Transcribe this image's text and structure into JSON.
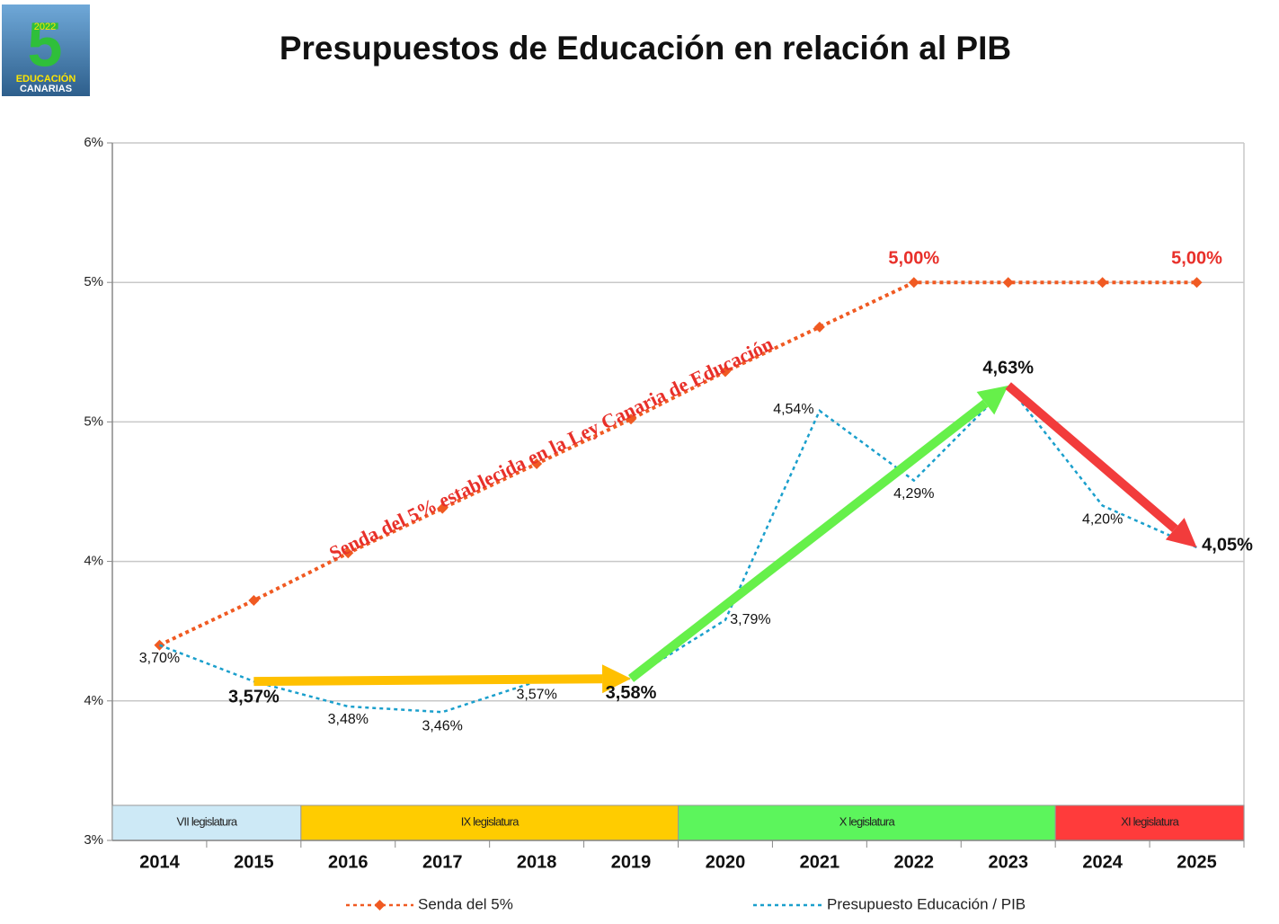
{
  "chart_data": {
    "type": "line",
    "title": "Presupuestos de Educación en relación al PIB",
    "logo": {
      "year": "2022",
      "lines": [
        "EDUCACIÓN",
        "CANARIAS"
      ]
    },
    "categories": [
      "2014",
      "2015",
      "2016",
      "2017",
      "2018",
      "2019",
      "2020",
      "2021",
      "2022",
      "2023",
      "2024",
      "2025"
    ],
    "series": [
      {
        "name": "Senda del 5%",
        "color": "#f05a22",
        "values": [
          3.7,
          3.86,
          4.03,
          4.19,
          4.35,
          4.51,
          4.68,
          4.84,
          5.0,
          5.0,
          5.0,
          5.0
        ],
        "value_labels": [
          null,
          null,
          null,
          null,
          null,
          null,
          null,
          null,
          "5,00%",
          null,
          null,
          "5,00%"
        ]
      },
      {
        "name": "Presupuesto Educación / PIB",
        "color": "#1a9fcc",
        "values": [
          3.7,
          3.57,
          3.48,
          3.46,
          3.57,
          3.58,
          3.79,
          4.54,
          4.29,
          4.63,
          4.2,
          4.05
        ],
        "value_labels": [
          "3,70%",
          "3,57%",
          "3,48%",
          "3,46%",
          "3,57%",
          "3,58%",
          "3,79%",
          "4,54%",
          "4,29%",
          "4,63%",
          "4,20%",
          "4,05%"
        ]
      }
    ],
    "ylim": [
      3,
      5.5
    ],
    "yticks": [
      {
        "value": 3,
        "label": "3%"
      },
      {
        "value": 3.5,
        "label": "4%"
      },
      {
        "value": 4,
        "label": "4%"
      },
      {
        "value": 4.5,
        "label": "5%"
      },
      {
        "value": 5,
        "label": "5%"
      },
      {
        "value": 5.5,
        "label": "6%"
      }
    ],
    "grid": true,
    "annotation": "Senda del 5% establecida en la Ley Canaria de Educación",
    "bands": [
      {
        "label": "VII legislatura",
        "from": "2014",
        "to": "2015",
        "color": "#cde9f6"
      },
      {
        "label": "IX legislatura",
        "from": "2016",
        "to": "2019",
        "color": "#ffcc00"
      },
      {
        "label": "X legislatura",
        "from": "2020",
        "to": "2023",
        "color": "#5cf55c"
      },
      {
        "label": "XI legislatura",
        "from": "2024",
        "to": "2025",
        "color": "#ff3b3b"
      }
    ],
    "arrows": [
      {
        "from": "2015",
        "to": "2019",
        "color": "#ffc000"
      },
      {
        "from": "2019",
        "to": "2023",
        "color": "#66f04a"
      },
      {
        "from": "2023",
        "to": "2025",
        "color": "#f23c3c"
      }
    ]
  }
}
